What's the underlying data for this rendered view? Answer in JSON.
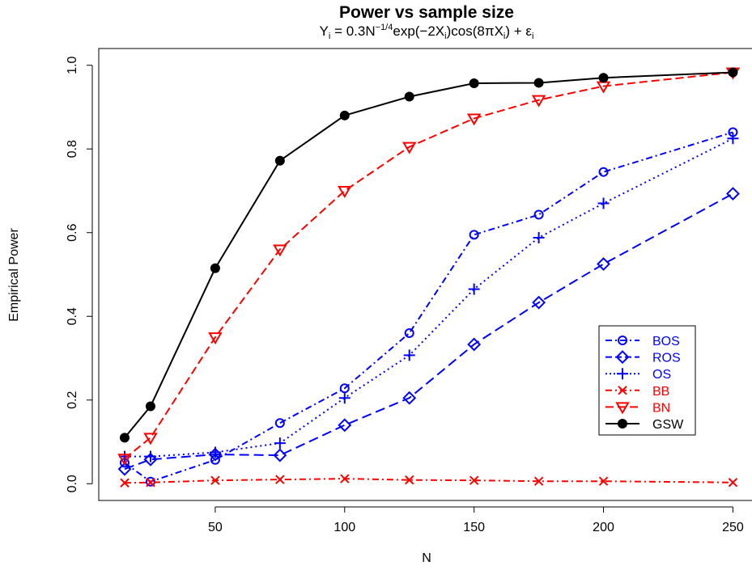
{
  "chart_data": {
    "type": "line",
    "title": "Power vs sample size",
    "subtitle": {
      "y": "Y",
      "y_sub": "i",
      "eq": " = 0.3N",
      "exp": "−1/4",
      "f1": "exp(−2X",
      "f1_sub": "i",
      "f2": ")cos(8πX",
      "f2_sub": "i",
      "f3": ") + ε",
      "f3_sub": "i"
    },
    "xlabel": "N",
    "ylabel": "Empirical Power",
    "xlim": [
      5,
      258
    ],
    "ylim": [
      -0.04,
      1.04
    ],
    "x_ticks": [
      50,
      100,
      150,
      200,
      250
    ],
    "y_ticks": [
      0.0,
      0.2,
      0.4,
      0.6,
      0.8,
      1.0
    ],
    "x_tick_labels": [
      "50",
      "100",
      "150",
      "200",
      "250"
    ],
    "y_tick_labels": [
      "0.0",
      "0.2",
      "0.4",
      "0.6",
      "0.8",
      "1.0"
    ],
    "legend_position": "right",
    "x": [
      15,
      25,
      50,
      75,
      100,
      125,
      150,
      175,
      200,
      250
    ],
    "series": [
      {
        "name": "BOS",
        "color": "#0000ff",
        "marker": "circle",
        "dash": "8,4,2,4",
        "values": [
          0.05,
          0.005,
          0.057,
          0.145,
          0.228,
          0.36,
          0.595,
          0.643,
          0.745,
          0.84
        ]
      },
      {
        "name": "ROS",
        "color": "#0000ff",
        "marker": "diamond",
        "dash": "12,6",
        "values": [
          0.035,
          0.058,
          0.07,
          0.068,
          0.14,
          0.205,
          0.333,
          0.433,
          0.525,
          0.693
        ]
      },
      {
        "name": "OS",
        "color": "#0000ff",
        "marker": "plus",
        "dash": "2,4",
        "values": [
          0.065,
          0.065,
          0.075,
          0.097,
          0.205,
          0.307,
          0.465,
          0.588,
          0.67,
          0.825
        ]
      },
      {
        "name": "BB",
        "color": "#ff0000",
        "marker": "x",
        "dash": "8,4,2,4",
        "values": [
          0.002,
          0.003,
          0.008,
          0.01,
          0.012,
          0.009,
          0.008,
          0.006,
          0.006,
          0.003
        ]
      },
      {
        "name": "BN",
        "color": "#ff0000",
        "marker": "triangle-down",
        "dash": "10,5",
        "values": [
          0.06,
          0.11,
          0.35,
          0.56,
          0.7,
          0.805,
          0.873,
          0.917,
          0.95,
          0.983
        ]
      },
      {
        "name": "GSW",
        "color": "#000000",
        "marker": "filled-circle",
        "dash": "",
        "values": [
          0.11,
          0.185,
          0.515,
          0.772,
          0.88,
          0.925,
          0.957,
          0.958,
          0.97,
          0.983
        ]
      }
    ]
  }
}
